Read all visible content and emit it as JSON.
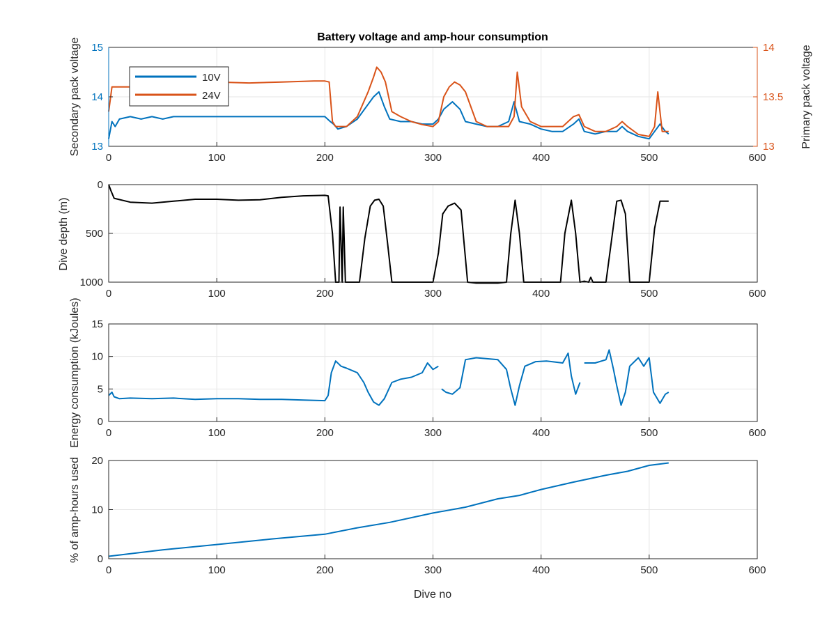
{
  "figure_title": "Battery voltage and amp-hour consumption",
  "colors": {
    "blue": "#0072BD",
    "orange": "#D95319",
    "black": "#000000",
    "grid": "#E6E6E6",
    "axis": "#262626"
  },
  "chart_data": [
    {
      "type": "line",
      "title": "Battery voltage and amp-hour consumption",
      "xlabel": "",
      "xlim": [
        0,
        600
      ],
      "xticks": [
        "0",
        "100",
        "200",
        "300",
        "400",
        "500",
        "600"
      ],
      "ylabel_left": "Secondary pack voltage",
      "ylabel_right": "Primary pack voltage",
      "ylim_left": [
        13,
        15
      ],
      "yticks_left": [
        "13",
        "14",
        "15"
      ],
      "ylim_right": [
        13,
        14
      ],
      "yticks_right": [
        "13",
        "13.5",
        "14"
      ],
      "grid": true,
      "legend": {
        "position": "top-left",
        "entries": [
          "10V",
          "24V"
        ]
      },
      "series": [
        {
          "name": "10V",
          "axis": "left",
          "color": "#0072BD",
          "x": [
            0,
            3,
            6,
            10,
            20,
            30,
            40,
            50,
            60,
            80,
            100,
            120,
            140,
            160,
            180,
            200,
            205,
            208,
            212,
            220,
            230,
            240,
            245,
            250,
            255,
            260,
            270,
            280,
            290,
            300,
            305,
            310,
            318,
            325,
            330,
            340,
            350,
            360,
            370,
            375,
            380,
            390,
            400,
            410,
            420,
            430,
            435,
            440,
            450,
            460,
            470,
            475,
            480,
            490,
            500,
            505,
            510,
            515,
            518
          ],
          "values": [
            13.15,
            13.5,
            13.4,
            13.55,
            13.6,
            13.55,
            13.6,
            13.55,
            13.6,
            13.6,
            13.6,
            13.6,
            13.6,
            13.6,
            13.6,
            13.6,
            13.5,
            13.45,
            13.35,
            13.4,
            13.55,
            13.85,
            14.0,
            14.1,
            13.8,
            13.55,
            13.5,
            13.5,
            13.45,
            13.45,
            13.55,
            13.75,
            13.9,
            13.75,
            13.5,
            13.45,
            13.4,
            13.4,
            13.5,
            13.9,
            13.5,
            13.45,
            13.35,
            13.3,
            13.3,
            13.45,
            13.55,
            13.3,
            13.25,
            13.3,
            13.3,
            13.4,
            13.3,
            13.2,
            13.15,
            13.3,
            13.45,
            13.3,
            13.25
          ]
        },
        {
          "name": "24V",
          "axis": "right",
          "color": "#D95319",
          "x": [
            0,
            3,
            6,
            10,
            20,
            40,
            60,
            80,
            100,
            130,
            160,
            190,
            200,
            204,
            207,
            210,
            215,
            220,
            230,
            240,
            245,
            248,
            252,
            256,
            262,
            270,
            280,
            290,
            300,
            305,
            310,
            315,
            320,
            325,
            330,
            340,
            350,
            360,
            370,
            375,
            378,
            382,
            390,
            400,
            410,
            420,
            430,
            435,
            440,
            450,
            460,
            470,
            475,
            480,
            490,
            500,
            505,
            508,
            512,
            518
          ],
          "values": [
            13.35,
            13.6,
            13.6,
            13.6,
            13.6,
            13.62,
            13.63,
            13.64,
            13.65,
            13.64,
            13.65,
            13.66,
            13.66,
            13.65,
            13.25,
            13.2,
            13.2,
            13.2,
            13.3,
            13.55,
            13.7,
            13.8,
            13.75,
            13.65,
            13.35,
            13.3,
            13.25,
            13.22,
            13.2,
            13.25,
            13.5,
            13.6,
            13.65,
            13.62,
            13.55,
            13.25,
            13.2,
            13.2,
            13.2,
            13.3,
            13.75,
            13.4,
            13.25,
            13.2,
            13.2,
            13.2,
            13.3,
            13.32,
            13.2,
            13.15,
            13.15,
            13.2,
            13.25,
            13.2,
            13.12,
            13.1,
            13.2,
            13.55,
            13.15,
            13.15
          ]
        }
      ]
    },
    {
      "type": "line",
      "xlabel": "",
      "ylabel": "Dive depth (m)",
      "xlim": [
        0,
        600
      ],
      "xticks": [
        "0",
        "100",
        "200",
        "300",
        "400",
        "500",
        "600"
      ],
      "ylim": [
        0,
        1000
      ],
      "y_reversed": true,
      "yticks": [
        "0",
        "500",
        "1000"
      ],
      "grid": true,
      "series": [
        {
          "color": "#000000",
          "x": [
            0,
            2,
            5,
            20,
            40,
            60,
            80,
            100,
            120,
            140,
            160,
            180,
            200,
            203,
            207,
            210,
            213,
            214,
            216,
            217,
            219,
            226,
            232,
            237,
            242,
            246,
            250,
            254,
            258,
            262,
            270,
            290,
            300,
            305,
            309,
            314,
            320,
            326,
            332,
            340,
            360,
            368,
            372,
            376,
            380,
            384,
            400,
            418,
            422,
            428,
            432,
            436,
            440,
            444,
            446,
            448,
            450,
            460,
            466,
            470,
            474,
            478,
            482,
            486,
            495,
            500,
            505,
            510,
            518
          ],
          "values": [
            0,
            60,
            140,
            180,
            190,
            170,
            150,
            150,
            160,
            155,
            130,
            115,
            110,
            115,
            500,
            1000,
            1000,
            230,
            1000,
            230,
            1000,
            1000,
            1000,
            550,
            220,
            160,
            150,
            220,
            600,
            1000,
            1000,
            1000,
            1000,
            700,
            300,
            220,
            190,
            260,
            1000,
            1010,
            1010,
            1000,
            500,
            160,
            500,
            1000,
            1000,
            1000,
            500,
            160,
            500,
            1000,
            990,
            1000,
            950,
            1000,
            1000,
            1000,
            500,
            170,
            160,
            300,
            1000,
            1000,
            1000,
            1000,
            450,
            170,
            170
          ]
        }
      ]
    },
    {
      "type": "line",
      "xlabel": "",
      "ylabel": "Energy consumption (kJoules)",
      "xlim": [
        0,
        600
      ],
      "xticks": [
        "0",
        "100",
        "200",
        "300",
        "400",
        "500",
        "600"
      ],
      "ylim": [
        0,
        15
      ],
      "yticks": [
        "0",
        "5",
        "10",
        "15"
      ],
      "grid": true,
      "series": [
        {
          "color": "#0072BD",
          "x": [
            0,
            3,
            5,
            10,
            20,
            40,
            60,
            80,
            100,
            120,
            140,
            160,
            180,
            200,
            203,
            206,
            210,
            215,
            220,
            230,
            236,
            240,
            245,
            250,
            255,
            262,
            270,
            280,
            290,
            295,
            300,
            305,
            null,
            308,
            312,
            318,
            325,
            330,
            340,
            360,
            368,
            372,
            376,
            380,
            385,
            395,
            405,
            410,
            420,
            425,
            428,
            432,
            436,
            null,
            440,
            450,
            460,
            463,
            467,
            470,
            474,
            478,
            482,
            490,
            495,
            500,
            504,
            510,
            515,
            518
          ],
          "values": [
            4,
            4.5,
            3.8,
            3.5,
            3.6,
            3.5,
            3.6,
            3.4,
            3.5,
            3.5,
            3.4,
            3.4,
            3.3,
            3.2,
            4,
            7.5,
            9.3,
            8.5,
            8.2,
            7.5,
            6,
            4.5,
            3,
            2.5,
            3.5,
            6,
            6.5,
            6.8,
            7.5,
            9,
            8,
            8.5,
            null,
            5,
            4.5,
            4.2,
            5.2,
            9.5,
            9.8,
            9.5,
            8,
            5,
            2.5,
            5.5,
            8.5,
            9.2,
            9.3,
            9.2,
            9,
            10.5,
            7,
            4.2,
            6,
            null,
            9,
            9,
            9.5,
            11,
            8,
            5.5,
            2.5,
            4.5,
            8.5,
            9.8,
            8.5,
            9.8,
            4.5,
            2.8,
            4.2,
            4.5
          ]
        }
      ]
    },
    {
      "type": "line",
      "xlabel": "Dive no",
      "ylabel": "% of amp-hours used",
      "xlim": [
        0,
        600
      ],
      "xticks": [
        "0",
        "100",
        "200",
        "300",
        "400",
        "500",
        "600"
      ],
      "ylim": [
        0,
        20
      ],
      "yticks": [
        "0",
        "10",
        "20"
      ],
      "grid": true,
      "series": [
        {
          "color": "#0072BD",
          "x": [
            0,
            50,
            100,
            150,
            200,
            230,
            260,
            300,
            330,
            360,
            380,
            400,
            430,
            460,
            480,
            500,
            518
          ],
          "values": [
            0.5,
            1.8,
            2.9,
            4.0,
            5.0,
            6.3,
            7.4,
            9.3,
            10.5,
            12.2,
            12.9,
            14.1,
            15.6,
            17.0,
            17.8,
            19.0,
            19.5
          ]
        }
      ]
    }
  ]
}
